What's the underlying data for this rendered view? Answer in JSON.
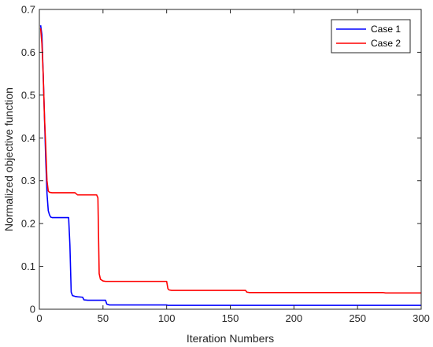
{
  "chart_data": {
    "type": "line",
    "title": "",
    "xlabel": "Iteration Numbers",
    "ylabel": "Normalized objective function",
    "xlim": [
      0,
      300
    ],
    "ylim": [
      0,
      0.7
    ],
    "xticks": [
      0,
      50,
      100,
      150,
      200,
      250,
      300
    ],
    "yticks": [
      0,
      0.1,
      0.2,
      0.3,
      0.4,
      0.5,
      0.6,
      0.7
    ],
    "xtick_labels": [
      "0",
      "50",
      "100",
      "150",
      "200",
      "250",
      "300"
    ],
    "ytick_labels": [
      "0",
      "0.1",
      "0.2",
      "0.3",
      "0.4",
      "0.5",
      "0.6",
      "0.7"
    ],
    "grid": false,
    "legend_position": "top-right",
    "series": [
      {
        "name": "Case 1",
        "color": "#0000ff",
        "x": [
          1,
          2,
          3,
          4,
          5,
          6,
          7,
          8,
          9,
          10,
          12,
          15,
          20,
          22,
          23,
          24,
          25,
          26,
          28,
          30,
          34,
          35,
          38,
          42,
          46,
          50,
          52,
          53,
          55,
          60,
          70,
          80,
          90,
          100,
          101,
          150,
          200,
          250,
          300
        ],
        "y": [
          0.663,
          0.64,
          0.55,
          0.45,
          0.35,
          0.27,
          0.23,
          0.22,
          0.215,
          0.214,
          0.214,
          0.214,
          0.214,
          0.214,
          0.214,
          0.15,
          0.04,
          0.032,
          0.03,
          0.029,
          0.028,
          0.022,
          0.021,
          0.021,
          0.021,
          0.021,
          0.021,
          0.012,
          0.01,
          0.01,
          0.01,
          0.01,
          0.01,
          0.01,
          0.009,
          0.009,
          0.009,
          0.009,
          0.009
        ]
      },
      {
        "name": "Case 2",
        "color": "#ff0000",
        "x": [
          1,
          2,
          3,
          4,
          5,
          6,
          7,
          8,
          10,
          20,
          28,
          30,
          45,
          46,
          47,
          48,
          50,
          52,
          55,
          60,
          70,
          80,
          100,
          101,
          102,
          104,
          110,
          130,
          150,
          162,
          163,
          165,
          200,
          250,
          270,
          272,
          300
        ],
        "y": [
          0.656,
          0.62,
          0.55,
          0.45,
          0.38,
          0.3,
          0.276,
          0.273,
          0.272,
          0.272,
          0.272,
          0.267,
          0.267,
          0.26,
          0.083,
          0.07,
          0.066,
          0.065,
          0.065,
          0.065,
          0.065,
          0.065,
          0.065,
          0.048,
          0.045,
          0.044,
          0.044,
          0.044,
          0.044,
          0.044,
          0.04,
          0.039,
          0.039,
          0.039,
          0.039,
          0.038,
          0.038
        ]
      }
    ]
  }
}
